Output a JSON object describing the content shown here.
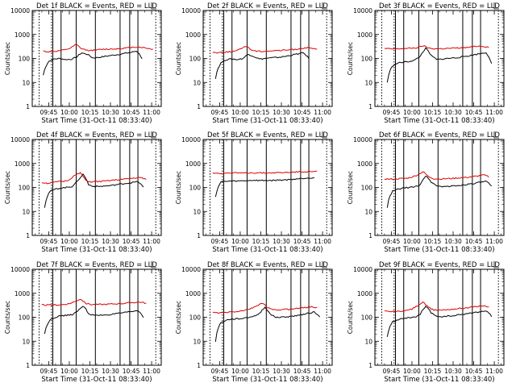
{
  "chart_data": [
    {
      "type": "line",
      "title": "Det 1f BLACK = Events, RED = LLD",
      "xlabel": "Start Time (31-Oct-11 08:33:40)",
      "ylabel": "Counts/sec",
      "x_ticks": [
        "09:45",
        "10:00",
        "10:15",
        "10:30",
        "10:45",
        "11:00"
      ],
      "y_ticks": [
        "1",
        "10",
        "100",
        "1000",
        "10000"
      ],
      "ylim": [
        1,
        10000
      ],
      "yscale": "log",
      "series": [
        {
          "color": "#000000",
          "start": "09:41",
          "values": [
            20,
            75,
            95,
            100,
            90,
            92,
            110,
            170,
            150,
            105,
            110,
            120,
            130,
            140,
            150,
            165,
            180,
            205,
            100
          ]
        },
        {
          "color": "#dd0000",
          "start": "09:41",
          "values": [
            200,
            190,
            195,
            210,
            230,
            270,
            380,
            250,
            220,
            220,
            230,
            240,
            245,
            250,
            260,
            270,
            290,
            300,
            290,
            265,
            240
          ]
        }
      ],
      "dotted_markers": [
        "09:38",
        "09:47",
        "11:03"
      ],
      "solid_markers": [
        "09:48",
        "09:54",
        "10:05",
        "10:19",
        "10:37",
        "10:44",
        "10:50"
      ]
    },
    {
      "type": "line",
      "title": "Det 2f BLACK = Events, RED = LLD",
      "xlabel": "Start Time (31-Oct-11 08:33:40)",
      "ylabel": "Counts/sec",
      "x_ticks": [
        "09:45",
        "10:00",
        "10:15",
        "10:30",
        "10:45",
        "11:00"
      ],
      "y_ticks": [
        "1",
        "10",
        "100",
        "1000",
        "10000"
      ],
      "ylim": [
        1,
        10000
      ],
      "yscale": "log",
      "series": [
        {
          "color": "#000000",
          "start": "09:42",
          "values": [
            15,
            65,
            90,
            95,
            90,
            100,
            150,
            120,
            95,
            100,
            105,
            110,
            115,
            125,
            140,
            155,
            170,
            100
          ]
        },
        {
          "color": "#dd0000",
          "start": "09:40",
          "values": [
            180,
            175,
            185,
            190,
            200,
            240,
            330,
            230,
            200,
            200,
            205,
            210,
            215,
            220,
            230,
            240,
            260,
            280,
            260,
            240
          ]
        }
      ],
      "dotted_markers": [
        "09:38",
        "09:47",
        "11:03"
      ],
      "solid_markers": [
        "09:48",
        "09:54",
        "10:05",
        "10:19",
        "10:37",
        "10:44",
        "10:50"
      ]
    },
    {
      "type": "line",
      "title": "Det 3f BLACK = Events, RED = LLD",
      "xlabel": "Start Time (31-Oct-11 08:33:40)",
      "ylabel": "Counts/sec",
      "x_ticks": [
        "09:45",
        "10:00",
        "10:15",
        "10:30",
        "10:45",
        "11:00"
      ],
      "y_ticks": [
        "1",
        "10",
        "100",
        "1000",
        "10000"
      ],
      "ylim": [
        1,
        10000
      ],
      "yscale": "log",
      "series": [
        {
          "color": "#000000",
          "start": "09:42",
          "values": [
            10,
            50,
            65,
            70,
            75,
            85,
            120,
            260,
            130,
            90,
            95,
            100,
            105,
            110,
            120,
            130,
            145,
            160,
            175,
            60
          ]
        },
        {
          "color": "#dd0000",
          "start": "09:40",
          "values": [
            260,
            250,
            250,
            255,
            260,
            270,
            280,
            340,
            270,
            255,
            255,
            260,
            265,
            270,
            275,
            285,
            300,
            330,
            320,
            300
          ]
        }
      ],
      "dotted_markers": [
        "09:38",
        "09:47",
        "11:03"
      ],
      "solid_markers": [
        "09:48",
        "09:54",
        "10:05",
        "10:19",
        "10:37",
        "10:44",
        "10:50"
      ]
    },
    {
      "type": "line",
      "title": "Det 4f BLACK = Events, RED = LLD",
      "xlabel": "Start Time (31-Oct-11 08:33:40)",
      "ylabel": "Counts/sec",
      "x_ticks": [
        "09:45",
        "10:00",
        "10:15",
        "10:30",
        "10:45",
        "11:00"
      ],
      "y_ticks": [
        "1",
        "10",
        "100",
        "1000",
        "10000"
      ],
      "ylim": [
        1,
        10000
      ],
      "yscale": "log",
      "series": [
        {
          "color": "#000000",
          "start": "09:42",
          "values": [
            15,
            70,
            85,
            95,
            100,
            110,
            180,
            350,
            130,
            110,
            110,
            115,
            120,
            130,
            140,
            150,
            160,
            175,
            100
          ]
        },
        {
          "color": "#dd0000",
          "start": "09:40",
          "values": [
            160,
            150,
            160,
            175,
            180,
            210,
            320,
            400,
            190,
            170,
            175,
            180,
            190,
            200,
            210,
            220,
            235,
            250,
            255,
            220
          ]
        }
      ],
      "dotted_markers": [
        "09:38",
        "09:47",
        "11:03"
      ],
      "solid_markers": [
        "09:48",
        "09:54",
        "10:05",
        "10:19",
        "10:37",
        "10:44",
        "10:50"
      ]
    },
    {
      "type": "line",
      "title": "Det 5f BLACK = Events, RED = LLD",
      "xlabel": "Start Time (31-Oct-11 08:33:40)",
      "ylabel": "Counts/sec",
      "x_ticks": [
        "09:45",
        "10:00",
        "10:15",
        "10:30",
        "10:45",
        "11:00"
      ],
      "y_ticks": [
        "1",
        "10",
        "100",
        "1000",
        "10000"
      ],
      "ylim": [
        1,
        10000
      ],
      "yscale": "log",
      "series": [
        {
          "color": "#000000",
          "start": "09:42",
          "values": [
            40,
            170,
            180,
            185,
            185,
            190,
            195,
            200,
            195,
            195,
            195,
            200,
            205,
            210,
            220,
            230,
            240,
            250,
            260
          ]
        },
        {
          "color": "#dd0000",
          "start": "09:40",
          "values": [
            400,
            395,
            395,
            400,
            400,
            400,
            405,
            410,
            410,
            405,
            405,
            410,
            415,
            420,
            430,
            440,
            450,
            460,
            470,
            460
          ]
        }
      ],
      "dotted_markers": [
        "09:38",
        "09:47",
        "11:03"
      ],
      "solid_markers": [
        "09:48",
        "09:54",
        "10:05",
        "10:19",
        "10:37",
        "10:44",
        "10:50"
      ]
    },
    {
      "type": "line",
      "title": "Det 6f BLACK = Events, RED = LLD",
      "xlabel": "Start Time (31-Oct-11 08:33:40)",
      "ylabel": "Counts/sec",
      "x_ticks": [
        "09:45",
        "10:00",
        "10:15",
        "10:30",
        "10:45",
        "11:00"
      ],
      "y_ticks": [
        "1",
        "10",
        "100",
        "1000",
        "10000"
      ],
      "ylim": [
        1,
        10000
      ],
      "yscale": "log",
      "series": [
        {
          "color": "#000000",
          "start": "09:42",
          "values": [
            15,
            70,
            85,
            95,
            100,
            105,
            130,
            300,
            170,
            115,
            110,
            110,
            115,
            120,
            130,
            140,
            150,
            165,
            180,
            110
          ]
        },
        {
          "color": "#dd0000",
          "start": "09:40",
          "values": [
            230,
            220,
            225,
            235,
            240,
            270,
            330,
            450,
            280,
            230,
            225,
            230,
            235,
            245,
            255,
            265,
            280,
            300,
            330,
            280
          ]
        }
      ],
      "dotted_markers": [
        "09:38",
        "09:47",
        "11:03"
      ],
      "solid_markers": [
        "09:48",
        "09:54",
        "10:05",
        "10:19",
        "10:37",
        "10:44",
        "10:50"
      ]
    },
    {
      "type": "line",
      "title": "Det 7f BLACK = Events, RED = LLD",
      "xlabel": "Start Time (31-Oct-11 08:33:40)",
      "ylabel": "Counts/sec",
      "x_ticks": [
        "09:45",
        "10:00",
        "10:15",
        "10:30",
        "10:45",
        "11:00"
      ],
      "y_ticks": [
        "1",
        "10",
        "100",
        "1000",
        "10000"
      ],
      "ylim": [
        1,
        10000
      ],
      "yscale": "log",
      "series": [
        {
          "color": "#000000",
          "start": "09:42",
          "values": [
            20,
            80,
            100,
            115,
            120,
            130,
            170,
            300,
            140,
            120,
            120,
            125,
            130,
            140,
            150,
            160,
            175,
            190,
            100
          ]
        },
        {
          "color": "#dd0000",
          "start": "09:40",
          "values": [
            330,
            320,
            320,
            330,
            340,
            370,
            450,
            570,
            380,
            340,
            340,
            345,
            350,
            360,
            370,
            380,
            400,
            420,
            430,
            380
          ]
        }
      ],
      "dotted_markers": [
        "09:38",
        "09:47",
        "11:03"
      ],
      "solid_markers": [
        "09:48",
        "09:54",
        "10:05",
        "10:19",
        "10:37",
        "10:44",
        "10:50"
      ]
    },
    {
      "type": "line",
      "title": "Det 8f BLACK = Events, RED = LLD",
      "xlabel": "Start Time (31-Oct-11 08:33:40)",
      "ylabel": "Counts/sec",
      "x_ticks": [
        "09:45",
        "10:00",
        "10:15",
        "10:30",
        "10:45",
        "11:00"
      ],
      "y_ticks": [
        "1",
        "10",
        "100",
        "1000",
        "10000"
      ],
      "ylim": [
        1,
        10000
      ],
      "yscale": "log",
      "series": [
        {
          "color": "#000000",
          "start": "09:42",
          "values": [
            10,
            60,
            75,
            85,
            85,
            90,
            100,
            110,
            140,
            260,
            130,
            100,
            100,
            105,
            110,
            120,
            135,
            150,
            165,
            100
          ]
        },
        {
          "color": "#dd0000",
          "start": "09:40",
          "values": [
            160,
            150,
            155,
            165,
            170,
            180,
            200,
            230,
            300,
            390,
            250,
            200,
            205,
            210,
            220,
            230,
            245,
            260,
            280,
            250
          ]
        }
      ],
      "dotted_markers": [
        "09:38",
        "09:47",
        "11:03"
      ],
      "solid_markers": [
        "09:48",
        "09:54",
        "10:05",
        "10:19",
        "10:37",
        "10:44",
        "10:50"
      ]
    },
    {
      "type": "line",
      "title": "Det 9f BLACK = Events, RED = LLD",
      "xlabel": "Start Time (31-Oct-11 08:33:40)",
      "ylabel": "Counts/sec",
      "x_ticks": [
        "09:45",
        "10:00",
        "10:15",
        "10:30",
        "10:45",
        "11:00"
      ],
      "y_ticks": [
        "1",
        "10",
        "100",
        "1000",
        "10000"
      ],
      "ylim": [
        1,
        10000
      ],
      "yscale": "log",
      "series": [
        {
          "color": "#000000",
          "start": "09:42",
          "values": [
            15,
            65,
            80,
            90,
            95,
            100,
            130,
            280,
            150,
            110,
            105,
            110,
            115,
            125,
            135,
            145,
            160,
            170,
            185,
            110
          ]
        },
        {
          "color": "#dd0000",
          "start": "09:40",
          "values": [
            180,
            170,
            175,
            180,
            190,
            220,
            300,
            420,
            250,
            200,
            200,
            205,
            215,
            225,
            235,
            250,
            265,
            285,
            300,
            270
          ]
        }
      ],
      "dotted_markers": [
        "09:38",
        "09:47",
        "11:03"
      ],
      "solid_markers": [
        "09:48",
        "09:54",
        "10:05",
        "10:19",
        "10:37",
        "10:44",
        "10:50"
      ]
    }
  ]
}
